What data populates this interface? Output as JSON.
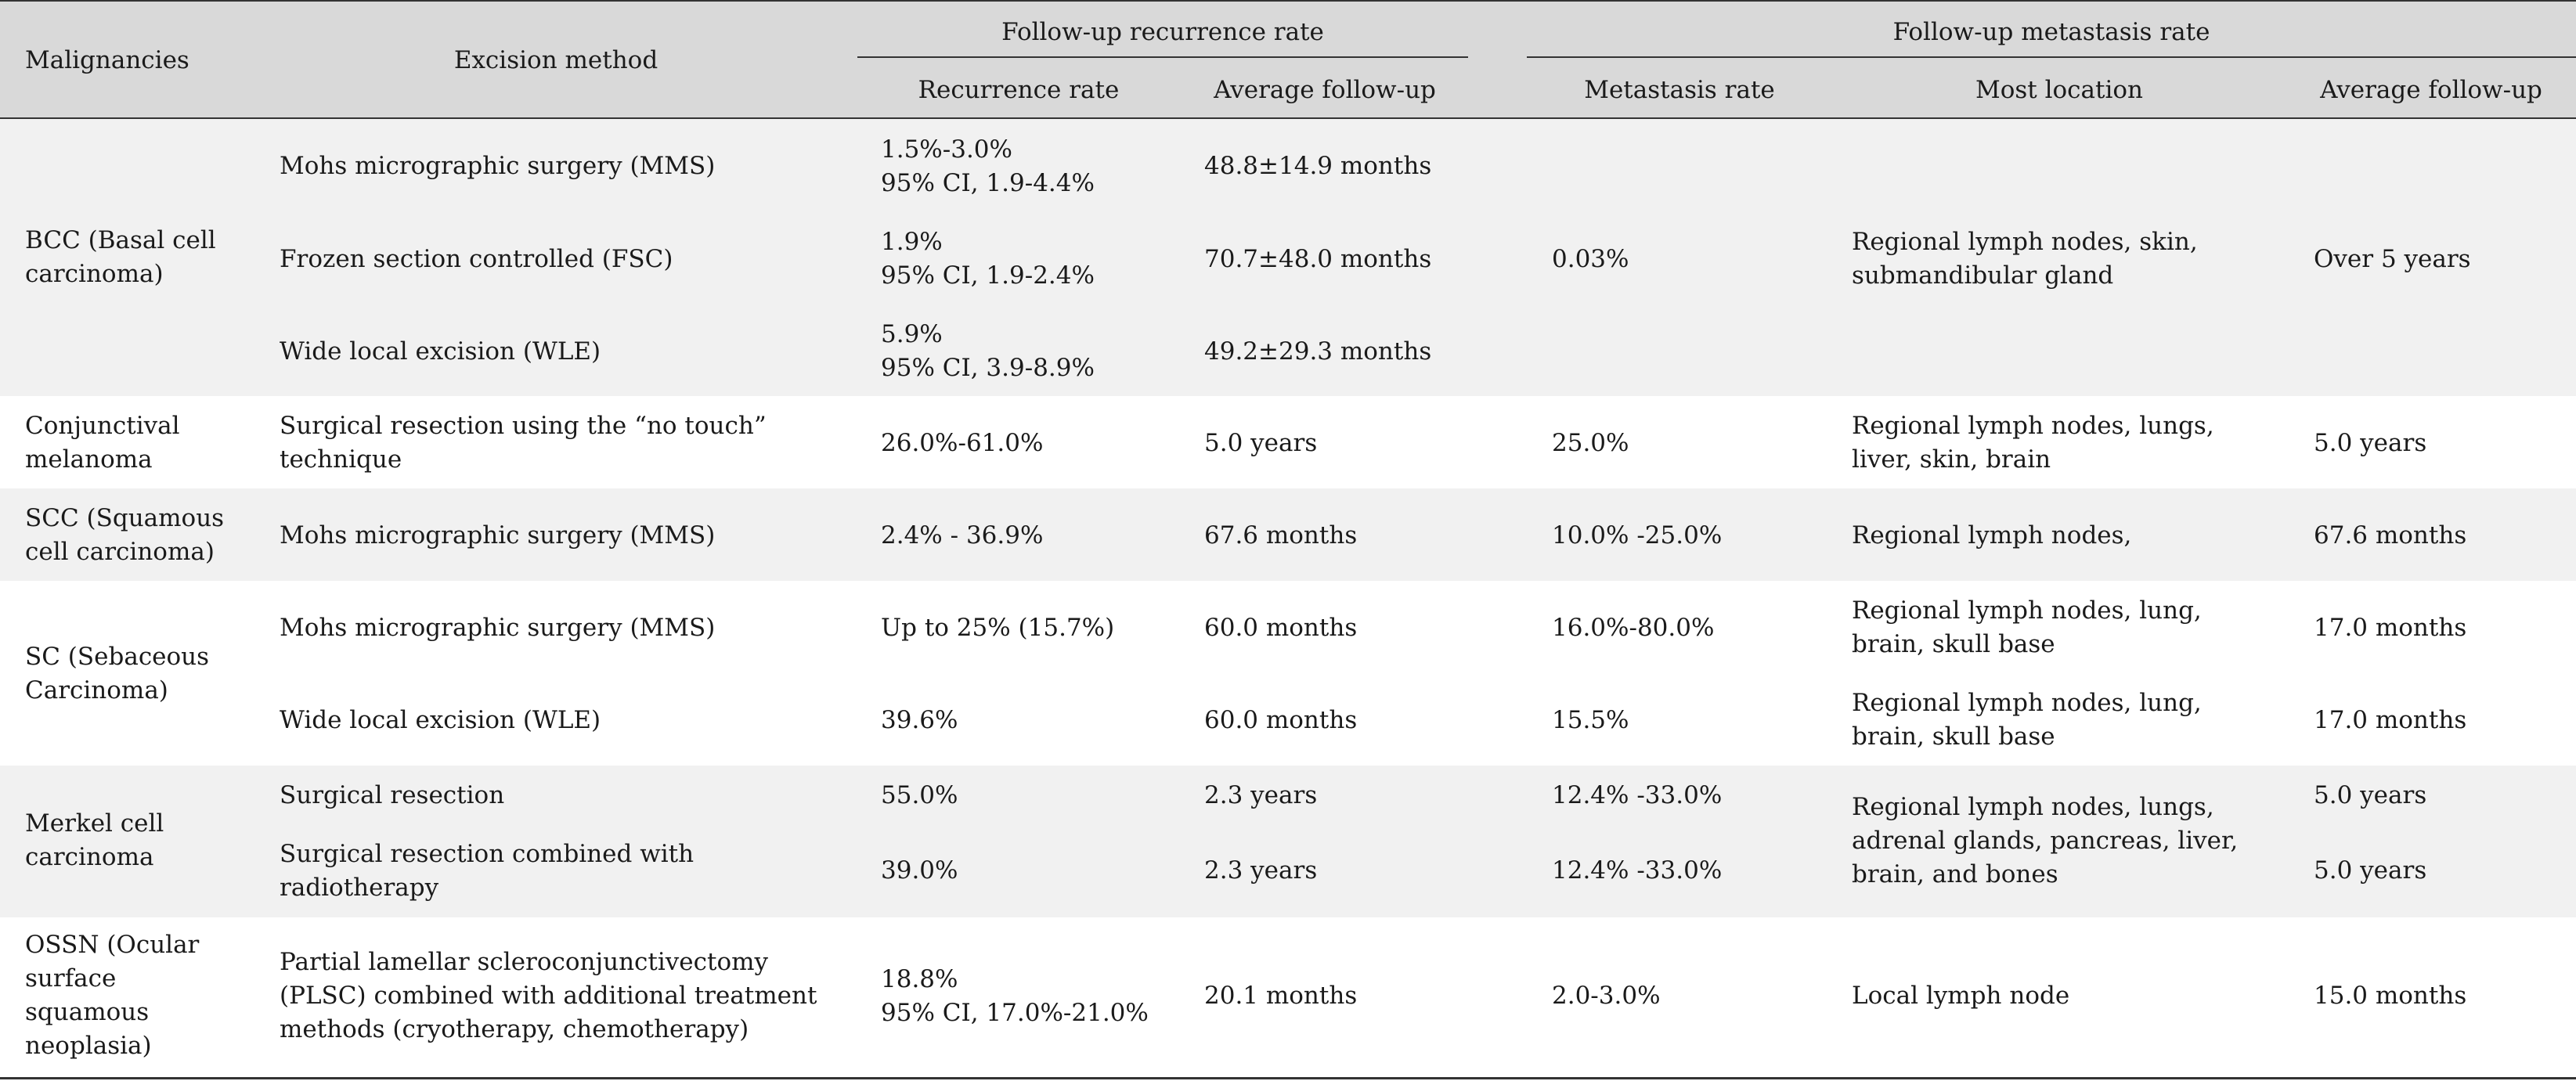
{
  "header": {
    "malignancies": "Malignancies",
    "excision_method": "Excision method",
    "group_recurrence": "Follow-up recurrence rate",
    "group_metastasis": "Follow-up metastasis rate",
    "recurrence_rate": "Recurrence rate",
    "avg_followup_1": "Average follow-up",
    "metastasis_rate": "Metastasis rate",
    "most_location": "Most location",
    "avg_followup_2": "Average follow-up"
  },
  "rows": {
    "bcc": {
      "malignancy": [
        "BCC (Basal cell",
        "carcinoma)"
      ],
      "methods": [
        {
          "method": [
            "Mohs micrographic surgery (MMS)"
          ],
          "recurrence": [
            "1.5%-3.0%",
            "95% CI, 1.9-4.4%"
          ],
          "followup": "48.8±14.9 months"
        },
        {
          "method": [
            "Frozen section controlled (FSC)"
          ],
          "recurrence": [
            "1.9%",
            "95% CI, 1.9-2.4%"
          ],
          "followup": "70.7±48.0 months"
        },
        {
          "method": [
            "Wide local excision (WLE)"
          ],
          "recurrence": [
            "5.9%",
            "95% CI, 3.9-8.9%"
          ],
          "followup": "49.2±29.3 months"
        }
      ],
      "metastasis": "0.03%",
      "location": [
        "Regional lymph nodes, skin,",
        "submandibular gland"
      ],
      "met_followup": "Over 5 years"
    },
    "conj": {
      "malignancy": [
        "Conjunctival",
        "melanoma"
      ],
      "method": [
        "Surgical resection using the “no touch”",
        "technique"
      ],
      "recurrence": "26.0%-61.0%",
      "followup": "5.0 years",
      "metastasis": "25.0%",
      "location": [
        "Regional lymph nodes, lungs,",
        "liver, skin, brain"
      ],
      "met_followup": "5.0 years"
    },
    "scc": {
      "malignancy": [
        "SCC (Squamous",
        "cell carcinoma)"
      ],
      "method": "Mohs micrographic surgery (MMS)",
      "recurrence": "2.4% - 36.9%",
      "followup": "67.6 months",
      "metastasis": "10.0% -25.0%",
      "location": "Regional lymph nodes,",
      "met_followup": "67.6 months"
    },
    "sc": {
      "malignancy": [
        "SC (Sebaceous",
        "Carcinoma)"
      ],
      "methods": [
        {
          "method": "Mohs micrographic surgery (MMS)",
          "recurrence": "Up to 25% (15.7%)",
          "followup": "60.0 months",
          "metastasis": "16.0%-80.0%",
          "location": [
            "Regional lymph nodes, lung,",
            "brain, skull base"
          ],
          "met_followup": "17.0 months"
        },
        {
          "method": "Wide local excision (WLE)",
          "recurrence": "39.6%",
          "followup": "60.0 months",
          "metastasis": "15.5%",
          "location": [
            "Regional lymph nodes, lung,",
            "brain, skull base"
          ],
          "met_followup": "17.0 months"
        }
      ]
    },
    "merkel": {
      "malignancy": [
        "Merkel cell",
        "carcinoma"
      ],
      "methods": [
        {
          "method": [
            "Surgical resection"
          ],
          "recurrence": "55.0%",
          "followup": "2.3 years",
          "metastasis": "12.4% -33.0%",
          "met_followup": "5.0 years"
        },
        {
          "method": [
            "Surgical resection combined with",
            "radiotherapy"
          ],
          "recurrence": "39.0%",
          "followup": "2.3 years",
          "metastasis": "12.4% -33.0%",
          "met_followup": "5.0 years"
        }
      ],
      "location": [
        "Regional lymph nodes, lungs,",
        "adrenal glands, pancreas, liver,",
        "brain, and bones"
      ]
    },
    "ossn": {
      "malignancy": [
        "OSSN (Ocular",
        "surface",
        "squamous",
        "neoplasia)"
      ],
      "method": [
        "Partial lamellar scleroconjunctivectomy",
        "(PLSC) combined with additional treatment",
        "methods (cryotherapy, chemotherapy)"
      ],
      "recurrence": [
        "18.8%",
        "95% CI, 17.0%-21.0%"
      ],
      "followup": "20.1 months",
      "metastasis": "2.0-3.0%",
      "location": "Local lymph node",
      "met_followup": "15.0 months"
    }
  }
}
